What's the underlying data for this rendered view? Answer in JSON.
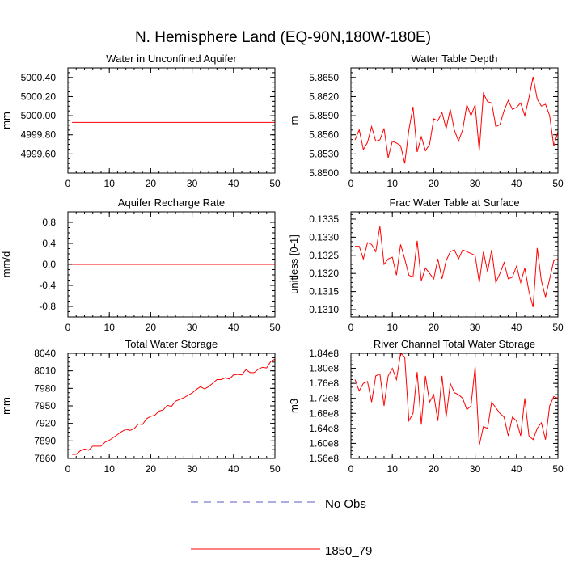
{
  "title": "N. Hemisphere Land (EQ-90N,180W-180E)",
  "legend": {
    "items": [
      {
        "label": "No Obs",
        "color": "#5b5bc8",
        "style": "dashed"
      },
      {
        "label": "1850_79",
        "color": "#ff0000",
        "style": "solid"
      }
    ]
  },
  "chart_data": [
    {
      "type": "line",
      "title": "Water in Unconfined Aquifer",
      "ylabel": "mm",
      "xlim": [
        0,
        50
      ],
      "ylim": [
        4999.4,
        5000.5
      ],
      "xticks": [
        0,
        10,
        20,
        30,
        40,
        50
      ],
      "xtick_labels": [
        "0",
        "10",
        "20",
        "30",
        "40",
        "50"
      ],
      "yticks": [
        4999.6,
        4999.8,
        5000.0,
        5000.2,
        5000.4
      ],
      "ytick_labels": [
        "4999.60",
        "4999.80",
        "5000.00",
        "5000.20",
        "5000.40"
      ],
      "minor_step": 0.05,
      "series": [
        {
          "name": "1850_79",
          "x": [
            1,
            50
          ],
          "y": [
            4999.93,
            4999.93
          ]
        }
      ]
    },
    {
      "type": "line",
      "title": "Water Table Depth",
      "ylabel": "m",
      "xlim": [
        0,
        50
      ],
      "ylim": [
        5.85,
        5.8665
      ],
      "xticks": [
        0,
        10,
        20,
        30,
        40,
        50
      ],
      "xtick_labels": [
        "0",
        "10",
        "20",
        "30",
        "40",
        "50"
      ],
      "yticks": [
        5.85,
        5.853,
        5.856,
        5.859,
        5.862,
        5.865
      ],
      "ytick_labels": [
        "5.8500",
        "5.8530",
        "5.8560",
        "5.8590",
        "5.8620",
        "5.8650"
      ],
      "minor_step": 0.00075,
      "series": [
        {
          "name": "1850_79",
          "x": [
            1,
            2,
            3,
            4,
            5,
            6,
            7,
            8,
            9,
            10,
            11,
            12,
            13,
            14,
            15,
            16,
            17,
            18,
            19,
            20,
            21,
            22,
            23,
            24,
            25,
            26,
            27,
            28,
            29,
            30,
            31,
            32,
            33,
            34,
            35,
            36,
            37,
            38,
            39,
            40,
            41,
            42,
            43,
            44,
            45,
            46,
            47,
            48,
            49,
            50
          ],
          "y": [
            5.8552,
            5.8568,
            5.8537,
            5.8548,
            5.8573,
            5.855,
            5.8552,
            5.857,
            5.8524,
            5.855,
            5.8547,
            5.8543,
            5.8515,
            5.8568,
            5.8604,
            5.8533,
            5.8557,
            5.8535,
            5.8545,
            5.8585,
            5.8582,
            5.8595,
            5.857,
            5.86,
            5.8567,
            5.855,
            5.8568,
            5.8607,
            5.859,
            5.8607,
            5.8535,
            5.8625,
            5.8612,
            5.861,
            5.8573,
            5.8576,
            5.8598,
            5.8614,
            5.86,
            5.8603,
            5.861,
            5.859,
            5.8618,
            5.8651,
            5.8616,
            5.8605,
            5.8608,
            5.859,
            5.8542,
            5.8565
          ]
        }
      ]
    },
    {
      "type": "line",
      "title": "Aquifer Recharge Rate",
      "ylabel": "mm/d",
      "xlim": [
        0,
        50
      ],
      "ylim": [
        -1,
        1
      ],
      "xticks": [
        0,
        10,
        20,
        30,
        40,
        50
      ],
      "xtick_labels": [
        "0",
        "10",
        "20",
        "30",
        "40",
        "50"
      ],
      "yticks": [
        -0.8,
        -0.4,
        0.0,
        0.4,
        0.8
      ],
      "ytick_labels": [
        "-0.8",
        "-0.4",
        "0.0",
        "0.4",
        "0.8"
      ],
      "minor_step": 0.1,
      "series": [
        {
          "name": "1850_79",
          "x": [
            1,
            50
          ],
          "y": [
            0,
            0
          ]
        }
      ]
    },
    {
      "type": "line",
      "title": "Frac Water Table at Surface",
      "ylabel": "unitless [0-1]",
      "xlim": [
        0,
        50
      ],
      "ylim": [
        0.1308,
        0.1337
      ],
      "xticks": [
        0,
        10,
        20,
        30,
        40,
        50
      ],
      "xtick_labels": [
        "0",
        "10",
        "20",
        "30",
        "40",
        "50"
      ],
      "yticks": [
        0.131,
        0.1315,
        0.132,
        0.1325,
        0.133,
        0.1335
      ],
      "ytick_labels": [
        "0.1310",
        "0.1315",
        "0.1320",
        "0.1325",
        "0.1330",
        "0.1335"
      ],
      "minor_step": 0.000125,
      "series": [
        {
          "name": "1850_79",
          "x": [
            1,
            2,
            3,
            4,
            5,
            6,
            7,
            8,
            9,
            10,
            11,
            12,
            13,
            14,
            15,
            16,
            17,
            18,
            19,
            20,
            21,
            22,
            23,
            24,
            25,
            26,
            27,
            28,
            29,
            30,
            31,
            32,
            33,
            34,
            35,
            36,
            37,
            38,
            39,
            40,
            41,
            42,
            43,
            44,
            45,
            46,
            47,
            48,
            49,
            50
          ],
          "y": [
            0.13275,
            0.13275,
            0.1324,
            0.13285,
            0.1328,
            0.1326,
            0.1333,
            0.13225,
            0.1324,
            0.13245,
            0.13195,
            0.1328,
            0.1324,
            0.13195,
            0.1319,
            0.1329,
            0.1318,
            0.13215,
            0.132,
            0.13185,
            0.1324,
            0.13185,
            0.13235,
            0.1326,
            0.13265,
            0.1324,
            0.13265,
            0.1326,
            0.13255,
            0.1325,
            0.13175,
            0.1326,
            0.13205,
            0.13265,
            0.13175,
            0.132,
            0.1323,
            0.13185,
            0.1319,
            0.1322,
            0.13175,
            0.13215,
            0.1315,
            0.13107,
            0.1327,
            0.1318,
            0.13135,
            0.13185,
            0.13235,
            0.1324
          ]
        }
      ]
    },
    {
      "type": "line",
      "title": "Total Water Storage",
      "ylabel": "mm",
      "xlim": [
        0,
        50
      ],
      "ylim": [
        7860,
        8040
      ],
      "xticks": [
        0,
        10,
        20,
        30,
        40,
        50
      ],
      "xtick_labels": [
        "0",
        "10",
        "20",
        "30",
        "40",
        "50"
      ],
      "yticks": [
        7860,
        7890,
        7920,
        7950,
        7980,
        8010,
        8040
      ],
      "ytick_labels": [
        "7860",
        "7890",
        "7920",
        "7950",
        "7980",
        "8010",
        "8040"
      ],
      "minor_step": 7.5,
      "series": [
        {
          "name": "1850_79",
          "x": [
            1,
            2,
            3,
            4,
            5,
            6,
            7,
            8,
            9,
            10,
            11,
            12,
            13,
            14,
            15,
            16,
            17,
            18,
            19,
            20,
            21,
            22,
            23,
            24,
            25,
            26,
            27,
            28,
            29,
            30,
            31,
            32,
            33,
            34,
            35,
            36,
            37,
            38,
            39,
            40,
            41,
            42,
            43,
            44,
            45,
            46,
            47,
            48,
            49,
            50
          ],
          "y": [
            7867,
            7867,
            7873,
            7876,
            7874,
            7881,
            7881,
            7881,
            7888,
            7891,
            7896,
            7901,
            7906,
            7910,
            7908,
            7911,
            7919,
            7918,
            7928,
            7932,
            7934,
            7941,
            7943,
            7951,
            7949,
            7958,
            7961,
            7964,
            7968,
            7972,
            7978,
            7983,
            7979,
            7983,
            7989,
            7995,
            7995,
            7998,
            7996,
            8003,
            8004,
            8003,
            8012,
            8007,
            8007,
            8013,
            8016,
            8015,
            8026,
            8030
          ]
        }
      ]
    },
    {
      "type": "line",
      "title": "River Channel Total Water Storage",
      "ylabel": "m3",
      "xlim": [
        0,
        50
      ],
      "ylim": [
        156000000,
        184000000
      ],
      "xticks": [
        0,
        10,
        20,
        30,
        40,
        50
      ],
      "xtick_labels": [
        "0",
        "10",
        "20",
        "30",
        "40",
        "50"
      ],
      "yticks": [
        156000000,
        160000000,
        164000000,
        168000000,
        172000000,
        176000000,
        180000000,
        184000000
      ],
      "ytick_labels": [
        "1.56e8",
        "1.60e8",
        "1.64e8",
        "1.68e8",
        "1.72e8",
        "1.76e8",
        "1.80e8",
        "1.84e8"
      ],
      "minor_step": 1000000,
      "series": [
        {
          "name": "1850_79",
          "x": [
            1,
            2,
            3,
            4,
            5,
            6,
            7,
            8,
            9,
            10,
            11,
            12,
            13,
            14,
            15,
            16,
            17,
            18,
            19,
            20,
            21,
            22,
            23,
            24,
            25,
            26,
            27,
            28,
            29,
            30,
            31,
            32,
            33,
            34,
            35,
            36,
            37,
            38,
            39,
            40,
            41,
            42,
            43,
            44,
            45,
            46,
            47,
            48,
            49,
            50
          ],
          "y": [
            177000000,
            174000000,
            176000000,
            176500000,
            171000000,
            178000000,
            178500000,
            170000000,
            178000000,
            180000000,
            177000000,
            184000000,
            183000000,
            166000000,
            168000000,
            179000000,
            165000000,
            178000000,
            171000000,
            173000000,
            166000000,
            178000000,
            167000000,
            176000000,
            173500000,
            173000000,
            172000000,
            169000000,
            170000000,
            180500000,
            159500000,
            164500000,
            164000000,
            171000000,
            169500000,
            168000000,
            167000000,
            162000000,
            167000000,
            166000000,
            162000000,
            172000000,
            162000000,
            161000000,
            164000000,
            165500000,
            161000000,
            170000000,
            172500000,
            172000000
          ]
        }
      ]
    }
  ]
}
